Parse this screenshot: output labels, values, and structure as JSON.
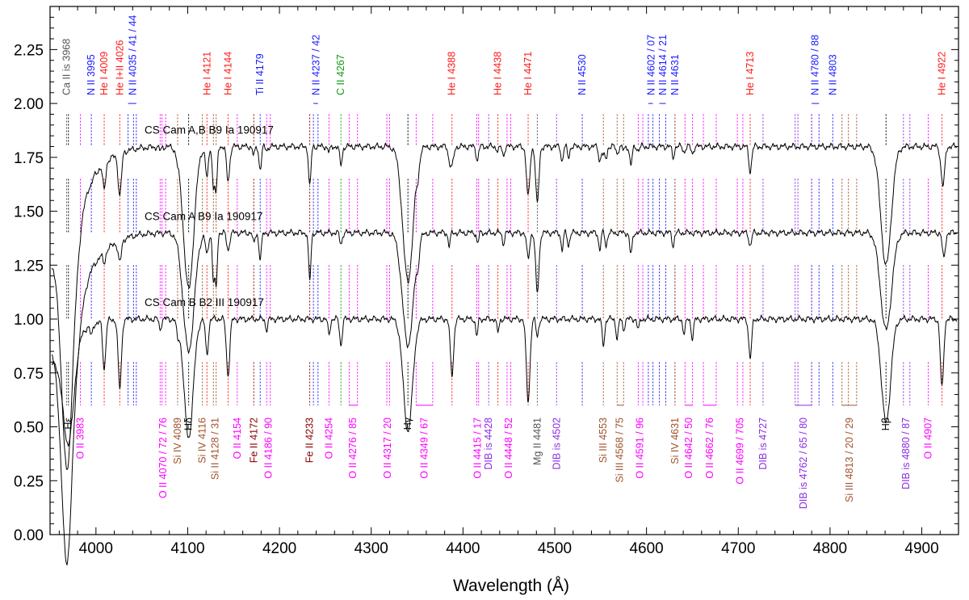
{
  "chart_data": {
    "type": "line",
    "xlabel": "Wavelength (Å)",
    "ylabel": "",
    "xlim": [
      3950,
      4940
    ],
    "ylim": [
      0.0,
      2.45
    ],
    "xticks": [
      4000,
      4100,
      4200,
      4300,
      4400,
      4500,
      4600,
      4700,
      4800,
      4900
    ],
    "yticks": [
      0.0,
      0.25,
      0.5,
      0.75,
      1.0,
      1.25,
      1.5,
      1.75,
      2.0,
      2.25
    ],
    "ytick_labels": [
      "0.00",
      "0.25",
      "0.50",
      "0.75",
      "1.00",
      "1.25",
      "1.50",
      "1.75",
      "2.00",
      "2.25"
    ],
    "colors": {
      "blue": "#1a1aff",
      "red": "#ff1a1a",
      "gray": "#555555",
      "green": "#119911",
      "magenta": "#ff00ff",
      "brown": "#a0522d",
      "darkred": "#8b0000",
      "purple": "#8a2be2",
      "black": "#000000"
    },
    "series": [
      {
        "name": "CS Cam A,B",
        "label": "CS Cam A,B   B9 Ia 190917",
        "offset": 1.8,
        "depth_scale": 1.0,
        "label_x": 4053,
        "label_y": 1.86
      },
      {
        "name": "CS Cam A",
        "label": "CS Cam A   B9 Ia 190917",
        "offset": 1.4,
        "depth_scale": 1.0,
        "label_x": 4053,
        "label_y": 1.46
      },
      {
        "name": "CS Cam B",
        "label": "CS Cam B   B2 III 190917",
        "offset": 1.0,
        "depth_scale": 1.0,
        "label_x": 4053,
        "label_y": 1.06
      }
    ],
    "top_labels": [
      {
        "x": 3968,
        "text": "Ca II is 3968",
        "color": "gray",
        "lines": [
          3968
        ],
        "dashed": true
      },
      {
        "x": 3995,
        "text": "N II 3995",
        "color": "blue",
        "lines": [
          3995
        ]
      },
      {
        "x": 4009,
        "text": "He I 4009",
        "color": "red",
        "lines": [
          4009
        ]
      },
      {
        "x": 4026,
        "text": "He I+II 4026",
        "color": "red",
        "lines": [
          4026
        ]
      },
      {
        "x": 4040,
        "text": "N II 4035 / 41 / 44",
        "color": "blue",
        "lines": [
          4035,
          4041,
          4044
        ],
        "bracket": true
      },
      {
        "x": 4121,
        "text": "He I 4121",
        "color": "red",
        "lines": [
          4121
        ]
      },
      {
        "x": 4144,
        "text": "He I 4144",
        "color": "red",
        "lines": [
          4144
        ]
      },
      {
        "x": 4179,
        "text": "Ti II 4179",
        "color": "blue",
        "lines": [
          4179
        ]
      },
      {
        "x": 4240,
        "text": "N II 4237 / 42",
        "color": "blue",
        "lines": [
          4237,
          4242
        ],
        "bracket": true
      },
      {
        "x": 4267,
        "text": "C II 4267",
        "color": "green",
        "lines": [
          4267
        ]
      },
      {
        "x": 4388,
        "text": "He I 4388",
        "color": "red",
        "lines": [
          4388
        ]
      },
      {
        "x": 4438,
        "text": "He I 4438",
        "color": "red",
        "lines": [
          4438
        ]
      },
      {
        "x": 4471,
        "text": "He I 4471",
        "color": "red",
        "lines": [
          4471
        ]
      },
      {
        "x": 4530,
        "text": "N II 4530",
        "color": "blue",
        "lines": [
          4530
        ]
      },
      {
        "x": 4605,
        "text": "N II 4602 / 07",
        "color": "blue",
        "lines": [
          4602,
          4607
        ],
        "bracket": true
      },
      {
        "x": 4618,
        "text": "N II 4614 / 21",
        "color": "blue",
        "lines": [
          4614,
          4621
        ],
        "bracket": true
      },
      {
        "x": 4631,
        "text": "N II 4631",
        "color": "blue",
        "lines": [
          4631
        ]
      },
      {
        "x": 4713,
        "text": "He I 4713",
        "color": "red",
        "lines": [
          4713
        ]
      },
      {
        "x": 4784,
        "text": "N II 4780 / 88",
        "color": "blue",
        "lines": [
          4780,
          4788
        ],
        "bracket": true
      },
      {
        "x": 4803,
        "text": "N II 4803",
        "color": "blue",
        "lines": [
          4803
        ]
      },
      {
        "x": 4922,
        "text": "He I 4922",
        "color": "red",
        "lines": [
          4922
        ]
      }
    ],
    "bottom_labels": [
      {
        "x": 3970,
        "text": "Hε",
        "color": "black",
        "lines": [
          3970
        ]
      },
      {
        "x": 3983,
        "text": "O II 3983",
        "color": "magenta",
        "lines": [
          3983
        ]
      },
      {
        "x": 4073,
        "text": "O II 4070 / 72 / 76",
        "color": "magenta",
        "lines": [
          4070,
          4072,
          4076
        ]
      },
      {
        "x": 4089,
        "text": "Si IV 4089",
        "color": "brown",
        "lines": [
          4089
        ]
      },
      {
        "x": 4101,
        "text": "Hδ",
        "color": "black",
        "lines": [
          4101
        ]
      },
      {
        "x": 4116,
        "text": "Si IV 4116",
        "color": "brown",
        "lines": [
          4116
        ]
      },
      {
        "x": 4130,
        "text": "Si II 4128 / 31",
        "color": "brown",
        "lines": [
          4128,
          4131
        ]
      },
      {
        "x": 4154,
        "text": "O II 4154",
        "color": "magenta",
        "lines": [
          4154
        ]
      },
      {
        "x": 4172,
        "text": "Fe II 4172",
        "color": "darkred",
        "lines": [
          4172
        ]
      },
      {
        "x": 4188,
        "text": "O II 4186 / 90",
        "color": "magenta",
        "lines": [
          4186,
          4190
        ]
      },
      {
        "x": 4233,
        "text": "Fe II 4233",
        "color": "darkred",
        "lines": [
          4233
        ]
      },
      {
        "x": 4254,
        "text": "O II 4254",
        "color": "magenta",
        "lines": [
          4254
        ]
      },
      {
        "x": 4280,
        "text": "O II 4276 / 85",
        "color": "magenta",
        "lines": [
          4276,
          4285
        ],
        "bracket": true
      },
      {
        "x": 4318,
        "text": "O II 4317 / 20",
        "color": "magenta",
        "lines": [
          4317,
          4320
        ]
      },
      {
        "x": 4340,
        "text": "Hγ",
        "color": "black",
        "lines": [
          4340
        ]
      },
      {
        "x": 4358,
        "text": "O II 4349 / 67",
        "color": "magenta",
        "lines": [
          4349,
          4367
        ],
        "bracket": true
      },
      {
        "x": 4416,
        "text": "O II 4415 / 17",
        "color": "magenta",
        "lines": [
          4415,
          4417
        ]
      },
      {
        "x": 4428,
        "text": "DIB is 4428",
        "color": "purple",
        "lines": [
          4428
        ]
      },
      {
        "x": 4450,
        "text": "O II 4448 / 52",
        "color": "magenta",
        "lines": [
          4448,
          4452
        ]
      },
      {
        "x": 4481,
        "text": "Mg II 4481",
        "color": "gray",
        "lines": [
          4481
        ]
      },
      {
        "x": 4502,
        "text": "DIB is 4502",
        "color": "purple",
        "lines": [
          4502
        ]
      },
      {
        "x": 4553,
        "text": "Si III 4553",
        "color": "brown",
        "lines": [
          4553
        ]
      },
      {
        "x": 4571,
        "text": "Si III 4568 / 75",
        "color": "brown",
        "lines": [
          4568,
          4575
        ],
        "bracket": true
      },
      {
        "x": 4593,
        "text": "O II 4591 / 96",
        "color": "magenta",
        "lines": [
          4591,
          4596
        ]
      },
      {
        "x": 4631,
        "text": "Si IV 4631",
        "color": "brown",
        "lines": [
          4631
        ]
      },
      {
        "x": 4646,
        "text": "O II 4642 / 50",
        "color": "magenta",
        "lines": [
          4642,
          4650
        ],
        "bracket": true
      },
      {
        "x": 4669,
        "text": "O II 4662 / 76",
        "color": "magenta",
        "lines": [
          4662,
          4676
        ],
        "bracket": true
      },
      {
        "x": 4702,
        "text": "O II 4699 / 705",
        "color": "magenta",
        "lines": [
          4699,
          4705
        ]
      },
      {
        "x": 4727,
        "text": "DIB is 4727",
        "color": "purple",
        "lines": [
          4727
        ]
      },
      {
        "x": 4771,
        "text": "DIB is 4762 / 65 / 80",
        "color": "purple",
        "lines": [
          4762,
          4765,
          4780
        ],
        "bracket": true
      },
      {
        "x": 4821,
        "text": "Si III 4813 / 20 / 29",
        "color": "brown",
        "lines": [
          4813,
          4820,
          4829
        ],
        "bracket": true
      },
      {
        "x": 4861,
        "text": "Hβ",
        "color": "black",
        "lines": [
          4861
        ]
      },
      {
        "x": 4883,
        "text": "DIB is 4880 / 87",
        "color": "purple",
        "lines": [
          4880,
          4887
        ]
      },
      {
        "x": 4907,
        "text": "O II 4907",
        "color": "magenta",
        "lines": [
          4907
        ]
      }
    ]
  }
}
